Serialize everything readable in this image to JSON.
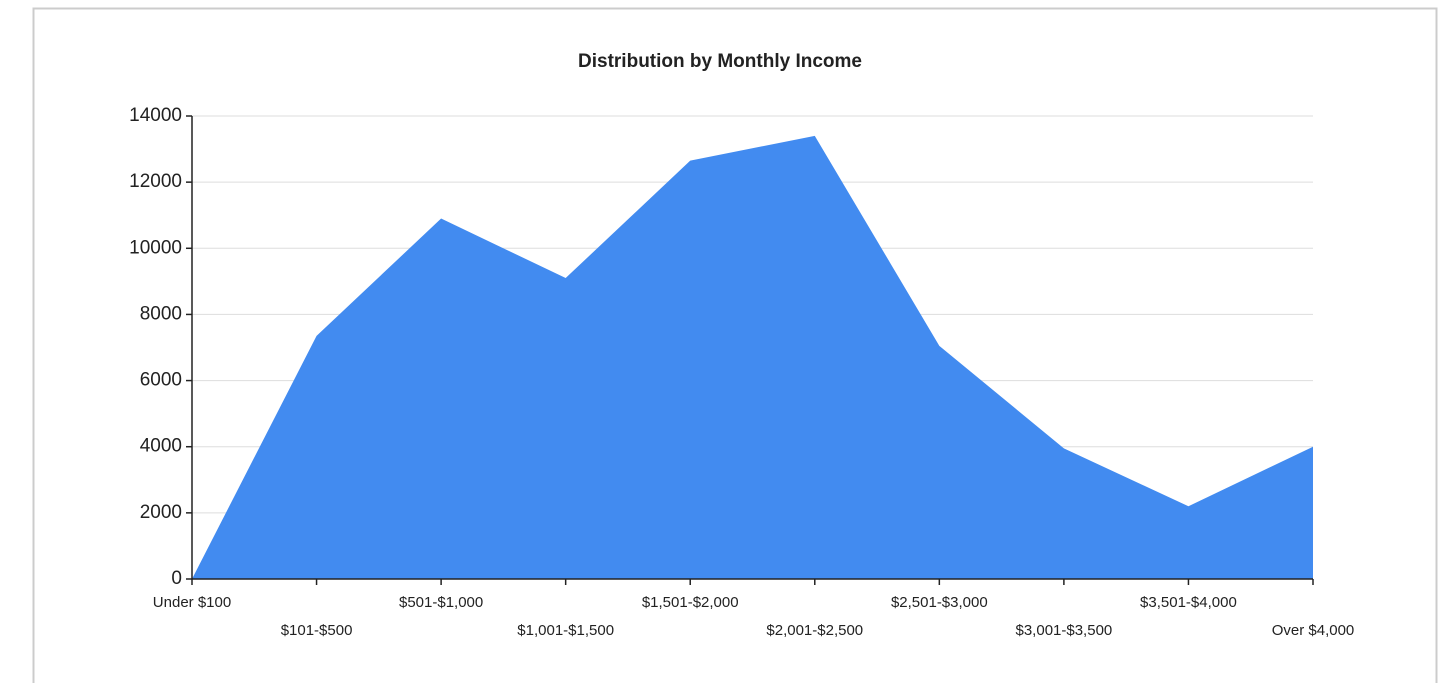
{
  "chart_data": {
    "type": "area",
    "title": "Distribution by Monthly Income",
    "categories": [
      "Under $100",
      "$101-$500",
      "$501-$1,000",
      "$1,001-$1,500",
      "$1,501-$2,000",
      "$2,001-$2,500",
      "$2,501-$3,000",
      "$3,001-$3,500",
      "$3,501-$4,000",
      "Over $4,000"
    ],
    "values": [
      0,
      7350,
      10900,
      9100,
      12650,
      13400,
      7050,
      3950,
      2200,
      4000
    ],
    "color": "#428bf0",
    "ylim": [
      0,
      14000
    ],
    "yticks": [
      0,
      2000,
      4000,
      6000,
      8000,
      10000,
      12000,
      14000
    ],
    "grid": true
  }
}
